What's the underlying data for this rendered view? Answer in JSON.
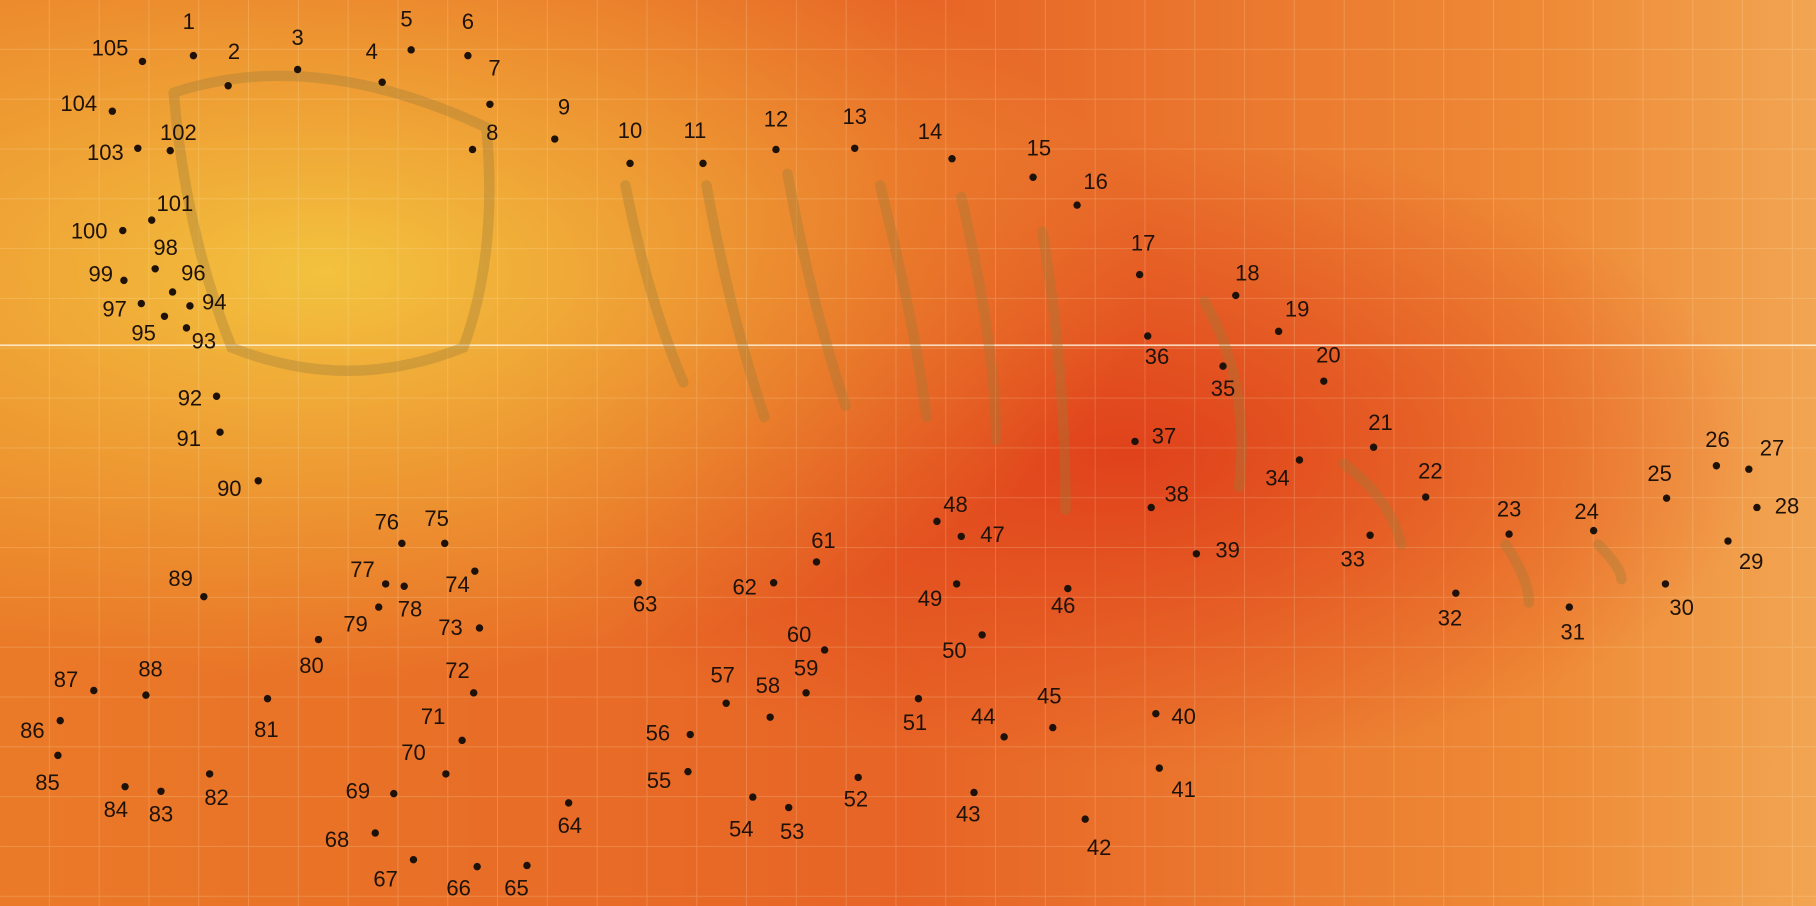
{
  "dots": [
    1,
    2,
    3,
    4,
    5,
    6,
    7,
    8,
    9,
    10,
    11,
    12,
    13,
    14,
    15,
    16,
    17,
    18,
    19,
    20,
    21,
    22,
    23,
    24,
    25,
    26,
    27,
    28,
    29,
    30,
    31,
    32,
    33,
    34,
    35,
    36,
    37,
    38,
    39,
    40,
    41,
    42,
    43,
    44,
    45,
    46,
    47,
    48,
    49,
    50,
    51,
    52,
    53,
    54,
    55,
    56,
    57,
    58,
    59,
    60,
    61,
    62,
    63,
    64,
    65,
    66,
    67,
    68,
    69,
    70,
    71,
    72,
    73,
    74,
    75,
    76,
    77,
    78,
    79,
    80,
    81,
    82,
    83,
    84,
    85,
    86,
    87,
    88,
    89,
    90,
    91,
    92,
    93,
    94,
    95,
    96,
    97,
    98,
    99,
    100,
    101,
    102,
    103,
    104,
    105
  ]
}
